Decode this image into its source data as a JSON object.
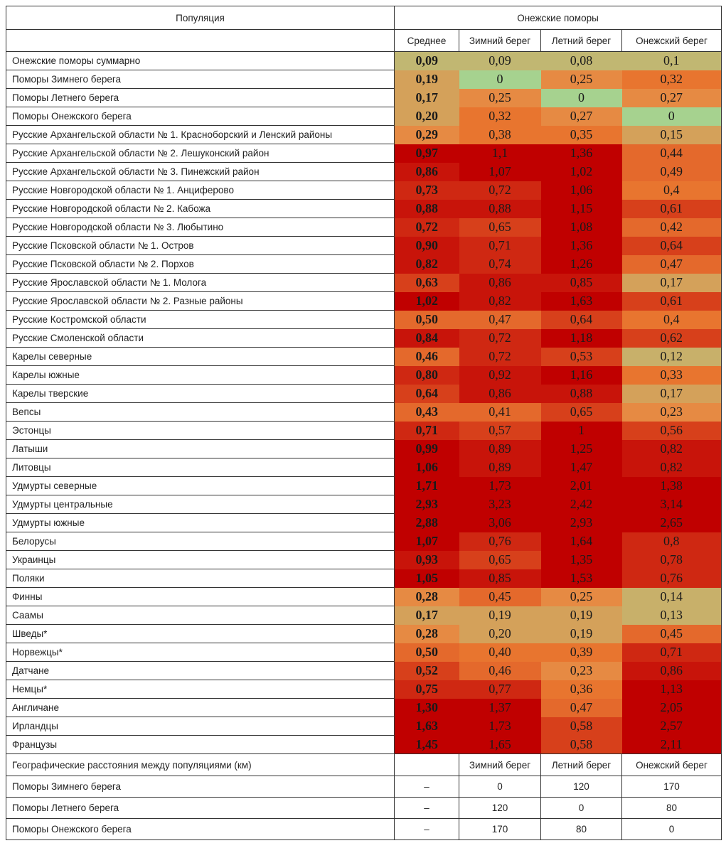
{
  "header": {
    "population_label": "Популяция",
    "group_label": "Онежские поморы",
    "columns": [
      "Среднее",
      "Зимний берег",
      "Летний берег",
      "Онежский берег"
    ]
  },
  "heatmap_colors": {
    "zero": "#a6d28f",
    "low": "#c1b772",
    "tan": "#d4a15a",
    "orange": "#e68a43",
    "deep_orange": "#e4692c",
    "red_orange": "#d7401b",
    "red": "#c8140a",
    "dark_red": "#c00000"
  },
  "rows": [
    {
      "population": "Онежские поморы суммарно",
      "values": [
        "0,09",
        "0,09",
        "0,08",
        "0,1"
      ]
    },
    {
      "population": "Поморы Зимнего берега",
      "values": [
        "0,19",
        "0",
        "0,25",
        "0,32"
      ]
    },
    {
      "population": "Поморы Летнего берега",
      "values": [
        "0,17",
        "0,25",
        "0",
        "0,27"
      ]
    },
    {
      "population": "Поморы Онежского берега",
      "values": [
        "0,20",
        "0,32",
        "0,27",
        "0"
      ]
    },
    {
      "population": "Русские Архангельской области № 1. Красноборский и Ленский районы",
      "values": [
        "0,29",
        "0,38",
        "0,35",
        "0,15"
      ]
    },
    {
      "population": "Русские Архангельской области № 2. Лешуконский район",
      "values": [
        "0,97",
        "1,1",
        "1,36",
        "0,44"
      ]
    },
    {
      "population": "Русские Архангельской области № 3. Пинежский район",
      "values": [
        "0,86",
        "1,07",
        "1,02",
        "0,49"
      ]
    },
    {
      "population": "Русские Новгородской области № 1. Анциферово",
      "values": [
        "0,73",
        "0,72",
        "1,06",
        "0,4"
      ]
    },
    {
      "population": "Русские Новгородской области № 2. Кабожа",
      "values": [
        "0,88",
        "0,88",
        "1,15",
        "0,61"
      ]
    },
    {
      "population": "Русские Новгородской области № 3. Любытино",
      "values": [
        "0,72",
        "0,65",
        "1,08",
        "0,42"
      ]
    },
    {
      "population": "Русские Псковской области № 1. Остров",
      "values": [
        "0,90",
        "0,71",
        "1,36",
        "0,64"
      ]
    },
    {
      "population": "Русские Псковской области № 2. Порхов",
      "values": [
        "0,82",
        "0,74",
        "1,26",
        "0,47"
      ]
    },
    {
      "population": "Русские Ярославской области № 1. Молога",
      "values": [
        "0,63",
        "0,86",
        "0,85",
        "0,17"
      ]
    },
    {
      "population": "Русские Ярославской области № 2. Разные районы",
      "values": [
        "1,02",
        "0,82",
        "1,63",
        "0,61"
      ]
    },
    {
      "population": "Русские Костромской области",
      "values": [
        "0,50",
        "0,47",
        "0,64",
        "0,4"
      ]
    },
    {
      "population": "Русские Смоленской области",
      "values": [
        "0,84",
        "0,72",
        "1,18",
        "0,62"
      ]
    },
    {
      "population": "Карелы северные",
      "values": [
        "0,46",
        "0,72",
        "0,53",
        "0,12"
      ]
    },
    {
      "population": "Карелы южные",
      "values": [
        "0,80",
        "0,92",
        "1,16",
        "0,33"
      ]
    },
    {
      "population": "Карелы тверские",
      "values": [
        "0,64",
        "0,86",
        "0,88",
        "0,17"
      ]
    },
    {
      "population": "Вепсы",
      "values": [
        "0,43",
        "0,41",
        "0,65",
        "0,23"
      ]
    },
    {
      "population": "Эстонцы",
      "values": [
        "0,71",
        "0,57",
        "1",
        "0,56"
      ]
    },
    {
      "population": "Латыши",
      "values": [
        "0,99",
        "0,89",
        "1,25",
        "0,82"
      ]
    },
    {
      "population": "Литовцы",
      "values": [
        "1,06",
        "0,89",
        "1,47",
        "0,82"
      ]
    },
    {
      "population": "Удмурты северные",
      "values": [
        "1,71",
        "1,73",
        "2,01",
        "1,38"
      ]
    },
    {
      "population": "Удмурты центральные",
      "values": [
        "2,93",
        "3,23",
        "2,42",
        "3,14"
      ]
    },
    {
      "population": "Удмурты южные",
      "values": [
        "2,88",
        "3,06",
        "2,93",
        "2,65"
      ]
    },
    {
      "population": "Белорусы",
      "values": [
        "1,07",
        "0,76",
        "1,64",
        "0,8"
      ]
    },
    {
      "population": "Украинцы",
      "values": [
        "0,93",
        "0,65",
        "1,35",
        "0,78"
      ]
    },
    {
      "population": "Поляки",
      "values": [
        "1,05",
        "0,85",
        "1,53",
        "0,76"
      ]
    },
    {
      "population": "Финны",
      "values": [
        "0,28",
        "0,45",
        "0,25",
        "0,14"
      ]
    },
    {
      "population": "Саамы",
      "values": [
        "0,17",
        "0,19",
        "0,19",
        "0,13"
      ]
    },
    {
      "population": "Шведы*",
      "values": [
        "0,28",
        "0,20",
        "0,19",
        "0,45"
      ]
    },
    {
      "population": "Норвежцы*",
      "values": [
        "0,50",
        "0,40",
        "0,39",
        "0,71"
      ]
    },
    {
      "population": "Датчане",
      "values": [
        "0,52",
        "0,46",
        "0,23",
        "0,86"
      ]
    },
    {
      "population": "Немцы*",
      "values": [
        "0,75",
        "0,77",
        "0,36",
        "1,13"
      ]
    },
    {
      "population": "Англичане",
      "values": [
        "1,30",
        "1,37",
        "0,47",
        "2,05"
      ]
    },
    {
      "population": "Ирландцы",
      "values": [
        "1,63",
        "1,73",
        "0,58",
        "2,57"
      ]
    },
    {
      "population": "Французы",
      "values": [
        "1,45",
        "1,65",
        "0,58",
        "2,11"
      ]
    }
  ],
  "geo": {
    "title": "Географические расстояния между популяциями (км)",
    "columns": [
      "",
      "Зимний берег",
      "Летний берег",
      "Онежский берег"
    ],
    "rows": [
      {
        "population": "Поморы Зимнего берега",
        "values": [
          "–",
          "0",
          "120",
          "170"
        ]
      },
      {
        "population": "Поморы Летнего берега",
        "values": [
          "–",
          "120",
          "0",
          "80"
        ]
      },
      {
        "population": "Поморы Онежского берега",
        "values": [
          "–",
          "170",
          "80",
          "0"
        ]
      }
    ]
  }
}
